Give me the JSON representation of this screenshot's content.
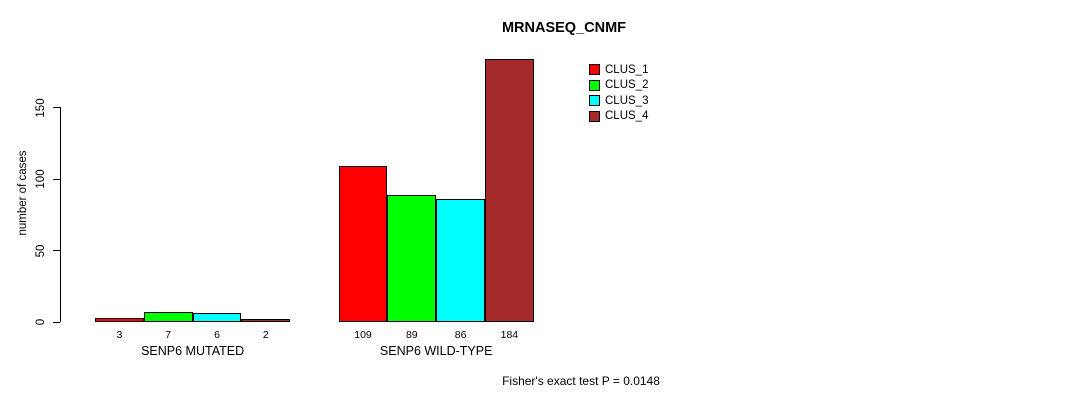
{
  "chart_data": {
    "type": "bar",
    "title": "MRNASEQ_CNMF",
    "xlabel": "",
    "ylabel": "number of cases",
    "categories": [
      "SENP6 MUTATED",
      "SENP6 WILD-TYPE"
    ],
    "series": [
      {
        "name": "CLUS_1",
        "color": "#FF0000",
        "values": [
          3,
          109
        ]
      },
      {
        "name": "CLUS_2",
        "color": "#00FF00",
        "values": [
          7,
          89
        ]
      },
      {
        "name": "CLUS_3",
        "color": "#00FFFF",
        "values": [
          6,
          86
        ]
      },
      {
        "name": "CLUS_4",
        "color": "#A52A2A",
        "values": [
          2,
          184
        ]
      }
    ],
    "yticks": [
      0,
      50,
      100,
      150
    ],
    "ylim": [
      0,
      187
    ],
    "grid": false,
    "bar_value_labels": true,
    "legend_position": "upper-right",
    "annotation": "Fisher's exact test P = 0.0148"
  }
}
